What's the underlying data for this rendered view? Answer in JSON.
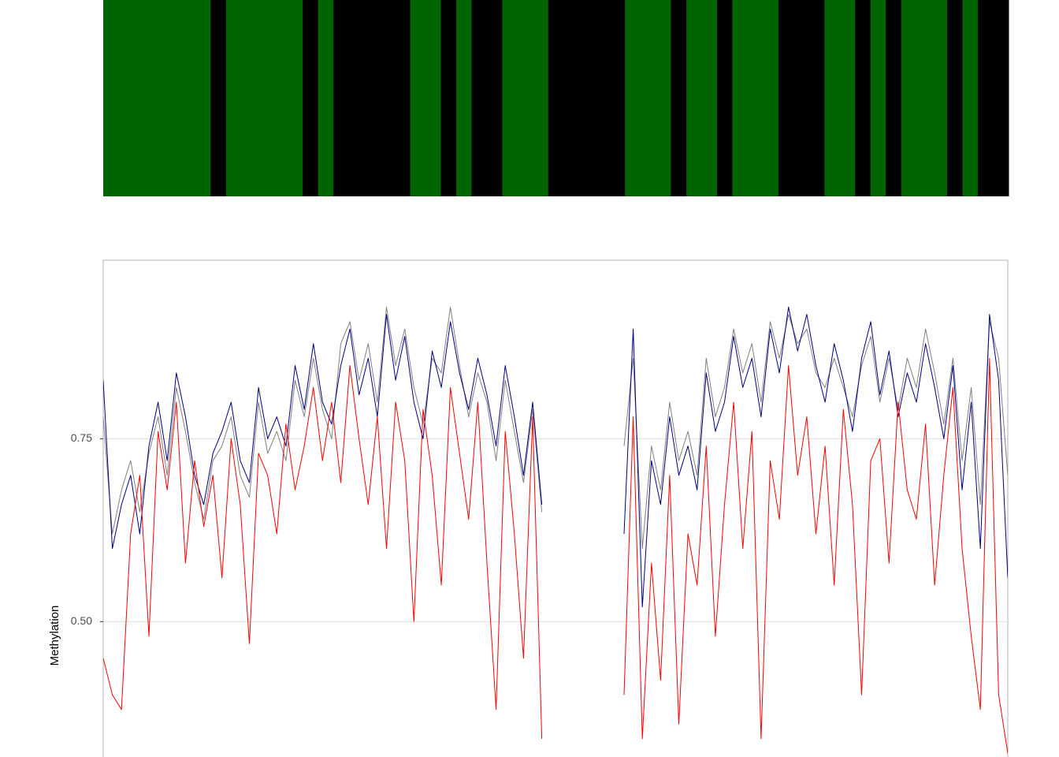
{
  "chart_data": [
    {
      "type": "strip",
      "values": [
        1,
        1,
        1,
        1,
        1,
        1,
        1,
        0,
        1,
        1,
        1,
        1,
        1,
        0,
        1,
        0,
        0,
        0,
        0,
        0,
        1,
        1,
        0,
        1,
        0,
        0,
        1,
        1,
        1,
        0,
        0,
        0,
        0,
        0,
        1,
        1,
        1,
        0,
        1,
        1,
        0,
        1,
        1,
        1,
        0,
        0,
        0,
        1,
        1,
        0,
        1,
        0,
        1,
        1,
        1,
        0,
        1,
        0,
        0
      ],
      "colors": [
        "#000000",
        "#006400"
      ]
    },
    {
      "type": "line",
      "y_label": "Methylation",
      "ylim": [
        0.315,
        0.994
      ],
      "yticks": [
        {
          "value": 0.5,
          "label": "0.50"
        },
        {
          "value": 0.75,
          "label": "0.75"
        }
      ],
      "grid": true,
      "series": [
        {
          "color": "#808080",
          "values": [
            0.78,
            0.62,
            0.68,
            0.72,
            0.65,
            0.73,
            0.78,
            0.7,
            0.82,
            0.76,
            0.69,
            0.64,
            0.72,
            0.74,
            0.78,
            0.7,
            0.67,
            0.8,
            0.73,
            0.76,
            0.72,
            0.83,
            0.78,
            0.86,
            0.79,
            0.75,
            0.88,
            0.91,
            0.83,
            0.88,
            0.8,
            0.93,
            0.85,
            0.9,
            0.82,
            0.77,
            0.86,
            0.84,
            0.93,
            0.85,
            0.78,
            0.84,
            0.8,
            0.72,
            0.83,
            0.76,
            0.69,
            0.79,
            0.65,
            null,
            null,
            null,
            null,
            null,
            null,
            null,
            null,
            0.74,
            0.86,
            0.6,
            0.74,
            0.68,
            0.8,
            0.72,
            0.76,
            0.7,
            0.86,
            0.78,
            0.82,
            0.9,
            0.84,
            0.88,
            0.8,
            0.91,
            0.86,
            0.92,
            0.88,
            0.9,
            0.84,
            0.82,
            0.86,
            0.82,
            0.78,
            0.85,
            0.89,
            0.8,
            0.86,
            0.79,
            0.86,
            0.82,
            0.9,
            0.84,
            0.77,
            0.86,
            0.72,
            0.82,
            0.66,
            0.91,
            0.86,
            0.7
          ]
        },
        {
          "color": "#000080",
          "values": [
            0.83,
            0.6,
            0.66,
            0.7,
            0.62,
            0.74,
            0.8,
            0.72,
            0.84,
            0.78,
            0.7,
            0.66,
            0.73,
            0.76,
            0.8,
            0.72,
            0.69,
            0.82,
            0.75,
            0.78,
            0.74,
            0.85,
            0.79,
            0.88,
            0.8,
            0.77,
            0.85,
            0.9,
            0.81,
            0.86,
            0.78,
            0.92,
            0.83,
            0.89,
            0.8,
            0.75,
            0.87,
            0.82,
            0.91,
            0.84,
            0.79,
            0.86,
            0.81,
            0.74,
            0.85,
            0.78,
            0.7,
            0.8,
            0.66,
            null,
            null,
            null,
            null,
            null,
            null,
            null,
            null,
            0.62,
            0.9,
            0.52,
            0.72,
            0.66,
            0.78,
            0.7,
            0.74,
            0.68,
            0.84,
            0.76,
            0.8,
            0.89,
            0.82,
            0.86,
            0.78,
            0.9,
            0.84,
            0.93,
            0.87,
            0.92,
            0.85,
            0.8,
            0.88,
            0.83,
            0.76,
            0.86,
            0.91,
            0.81,
            0.87,
            0.78,
            0.84,
            0.8,
            0.88,
            0.82,
            0.75,
            0.85,
            0.68,
            0.8,
            0.6,
            0.92,
            0.83,
            0.56
          ]
        },
        {
          "color": "#ff0000",
          "values": [
            0.45,
            0.4,
            0.38,
            0.62,
            0.7,
            0.48,
            0.76,
            0.68,
            0.8,
            0.58,
            0.72,
            0.63,
            0.7,
            0.56,
            0.75,
            0.66,
            0.47,
            0.73,
            0.7,
            0.62,
            0.77,
            0.68,
            0.74,
            0.82,
            0.72,
            0.8,
            0.69,
            0.85,
            0.75,
            0.66,
            0.78,
            0.6,
            0.8,
            0.72,
            0.5,
            0.79,
            0.7,
            0.55,
            0.82,
            0.73,
            0.64,
            0.8,
            0.58,
            0.38,
            0.76,
            0.62,
            0.45,
            0.78,
            0.34,
            null,
            null,
            null,
            null,
            null,
            null,
            null,
            null,
            0.4,
            0.78,
            0.34,
            0.58,
            0.42,
            0.7,
            0.36,
            0.62,
            0.55,
            0.74,
            0.48,
            0.66,
            0.8,
            0.6,
            0.76,
            0.34,
            0.72,
            0.64,
            0.85,
            0.7,
            0.78,
            0.62,
            0.74,
            0.55,
            0.79,
            0.66,
            0.4,
            0.72,
            0.75,
            0.58,
            0.8,
            0.68,
            0.64,
            0.77,
            0.55,
            0.7,
            0.82,
            0.6,
            0.48,
            0.38,
            0.86,
            0.4,
            0.32
          ]
        }
      ]
    }
  ]
}
